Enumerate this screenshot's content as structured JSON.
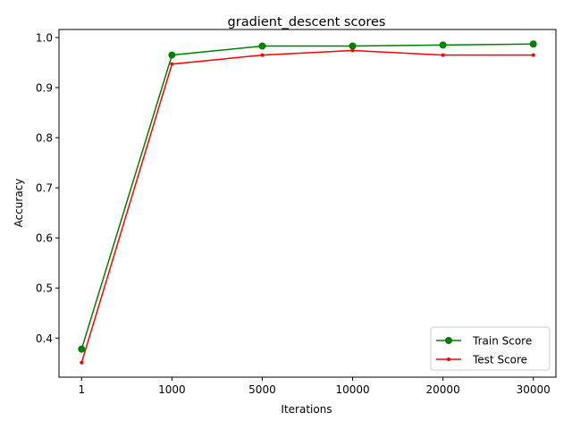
{
  "chart_data": {
    "type": "line",
    "title": "gradient_descent scores",
    "xlabel": "Iterations",
    "ylabel": "Accuracy",
    "categories": [
      "1",
      "1000",
      "5000",
      "10000",
      "20000",
      "30000"
    ],
    "yticks": [
      "0.4",
      "0.5",
      "0.6",
      "0.7",
      "0.8",
      "0.9",
      "1.0"
    ],
    "ylim": [
      0.322,
      1.016
    ],
    "grid": false,
    "legend_position": "lower-right",
    "series": [
      {
        "name": "Train Score",
        "color": "#008000",
        "marker": "circle",
        "values": [
          0.378,
          0.965,
          0.983,
          0.983,
          0.985,
          0.987
        ]
      },
      {
        "name": "Test Score",
        "color": "#ff0000",
        "marker": "point",
        "values": [
          0.351,
          0.947,
          0.965,
          0.974,
          0.965,
          0.965
        ]
      }
    ]
  }
}
